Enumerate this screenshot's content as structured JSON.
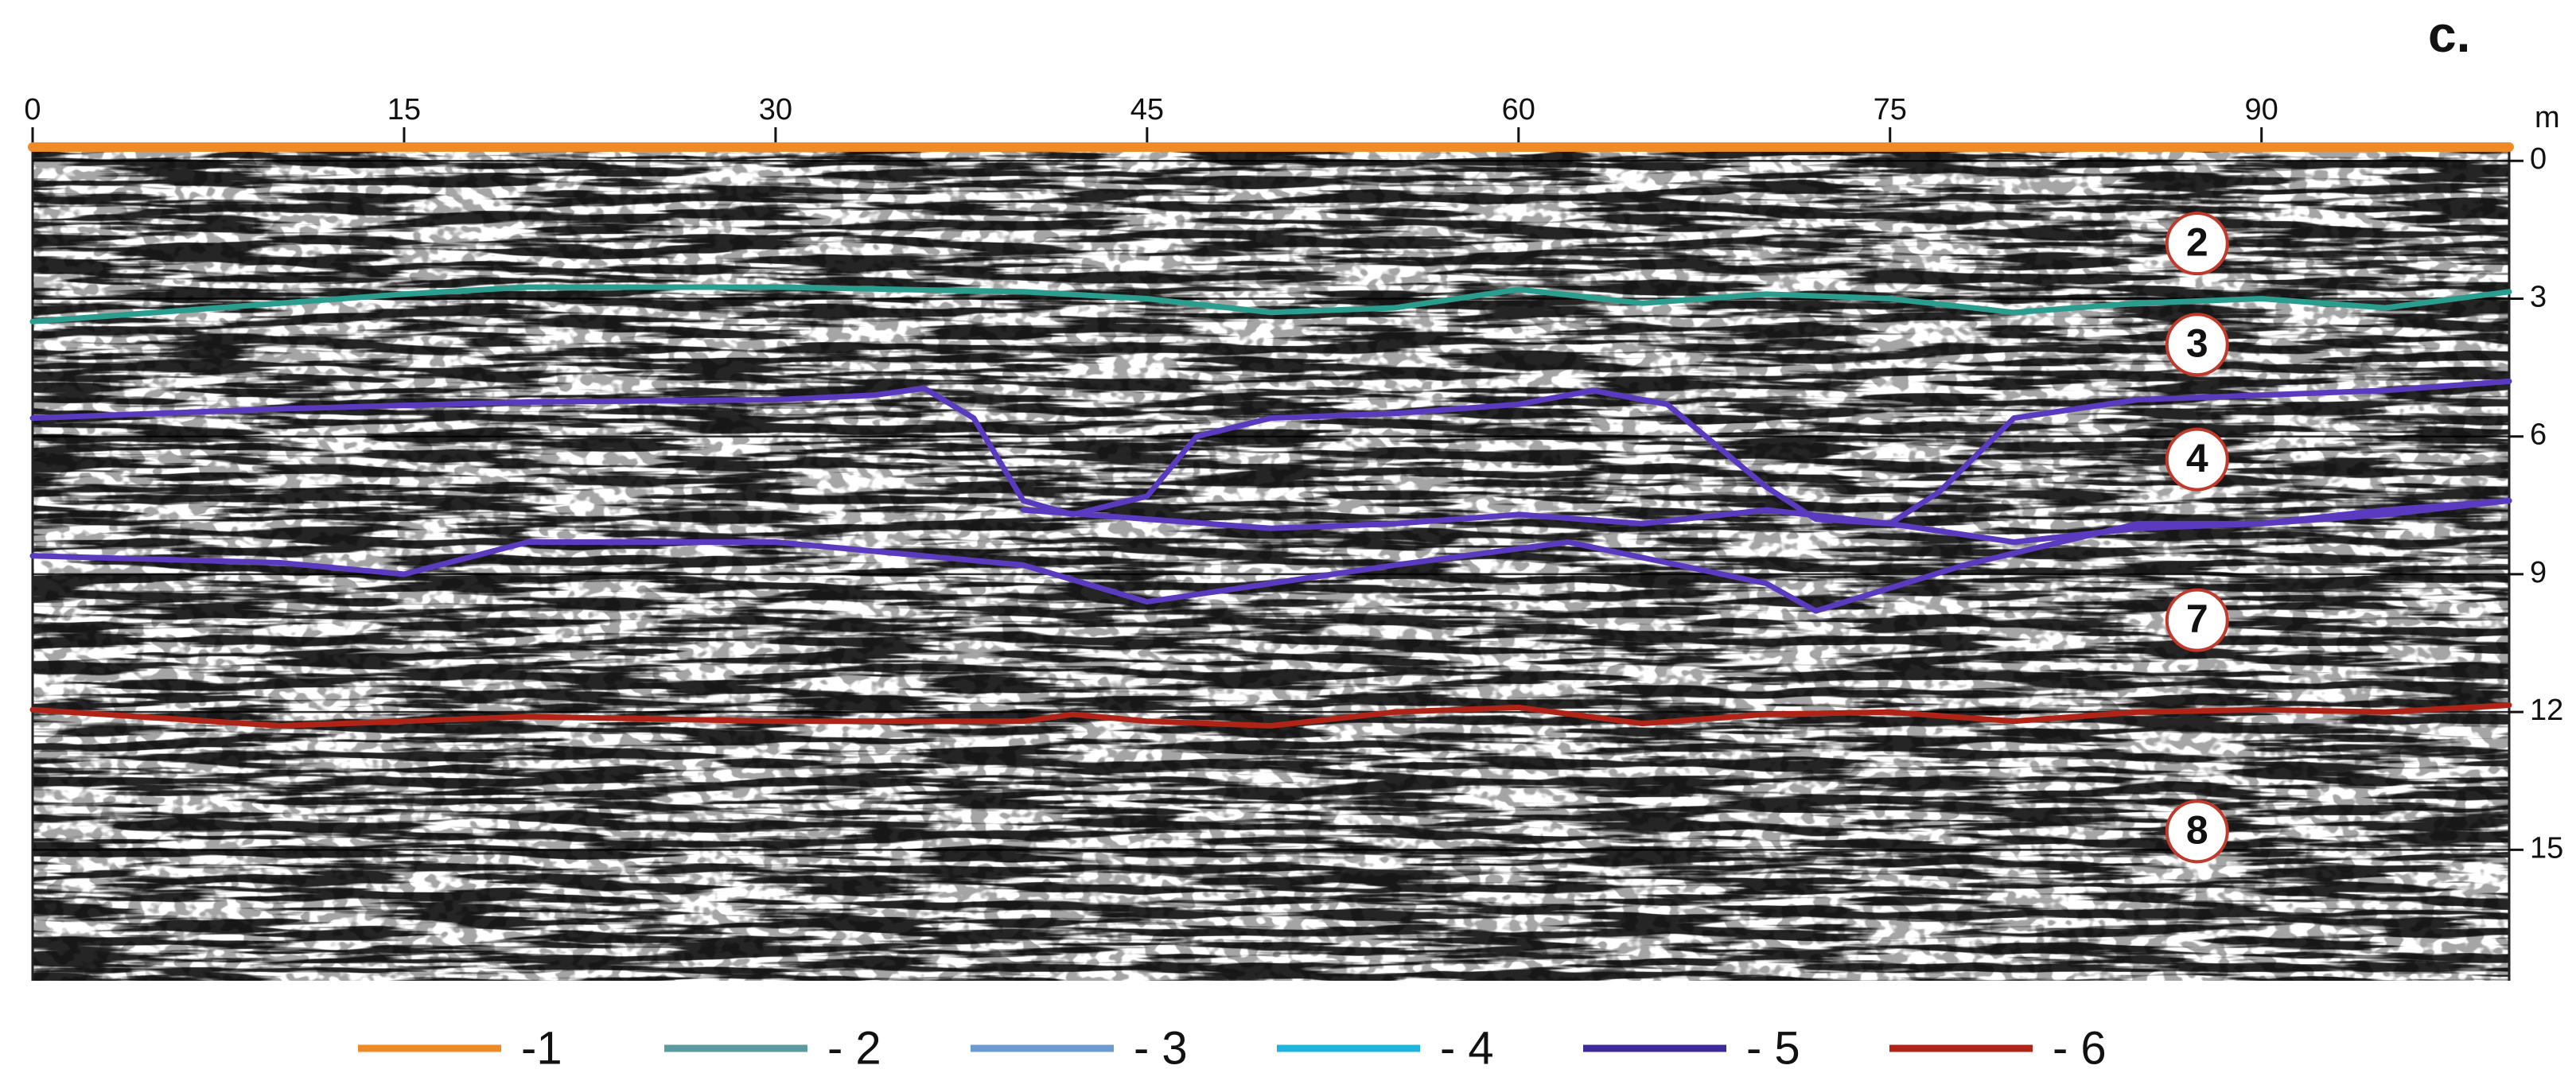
{
  "chart_data": {
    "type": "radargram",
    "panel_label": "c.",
    "xlabel": "m",
    "xlim": [
      0,
      100
    ],
    "xticks": [
      0,
      15,
      30,
      45,
      60,
      75,
      90
    ],
    "ylim": [
      -0.35,
      17.85
    ],
    "yticks": [
      0,
      3,
      6,
      9,
      12,
      15
    ],
    "grid": true,
    "legend": [
      {
        "label": "-1",
        "color": "#f08a24"
      },
      {
        "label": "- 2",
        "color": "#5b9aa0"
      },
      {
        "label": "- 3",
        "color": "#6c9bd2"
      },
      {
        "label": "- 4",
        "color": "#1fb4dc"
      },
      {
        "label": "- 5",
        "color": "#3f2a9c"
      },
      {
        "label": "- 6",
        "color": "#b02418"
      }
    ],
    "boundaries": [
      {
        "color": "#f08a24",
        "x": [
          0,
          100
        ],
        "values": [
          -0.3,
          -0.3
        ]
      },
      {
        "color": "#2a9d8f",
        "x": [
          0,
          5,
          10,
          15,
          20,
          25,
          30,
          35,
          40,
          45,
          50,
          55,
          60,
          65,
          70,
          75,
          80,
          85,
          90,
          95,
          100
        ],
        "values": [
          3.5,
          3.3,
          3.1,
          2.9,
          2.75,
          2.75,
          2.75,
          2.8,
          2.85,
          3.0,
          3.3,
          3.2,
          2.8,
          3.1,
          2.9,
          3.0,
          3.3,
          3.1,
          3.0,
          3.2,
          2.85
        ]
      },
      {
        "color": "#5a3bc0",
        "x": [
          0,
          10,
          20,
          30,
          34,
          36,
          38,
          40,
          42,
          45,
          47,
          50,
          55,
          60,
          63,
          66,
          68,
          70,
          72,
          75,
          77,
          80,
          85,
          90,
          95,
          100
        ],
        "values": [
          5.6,
          5.4,
          5.25,
          5.2,
          5.1,
          4.95,
          5.6,
          7.4,
          7.7,
          7.3,
          6.0,
          5.6,
          5.5,
          5.3,
          5.0,
          5.3,
          6.2,
          7.1,
          7.8,
          7.9,
          7.2,
          5.6,
          5.2,
          5.1,
          5.0,
          4.8
        ]
      },
      {
        "color": "#5a3bc0",
        "x": [
          40,
          45,
          50,
          55,
          60,
          65,
          70,
          75,
          80,
          85,
          90,
          95,
          100
        ],
        "values": [
          7.6,
          7.8,
          8.0,
          7.9,
          7.7,
          7.9,
          7.6,
          7.9,
          8.3,
          8.0,
          7.9,
          7.7,
          7.4
        ]
      },
      {
        "color": "#5a3bc0",
        "x": [
          0,
          10,
          15,
          20,
          30,
          40,
          45,
          50,
          55,
          62,
          70,
          72,
          78,
          85,
          90,
          95,
          100
        ],
        "values": [
          8.6,
          8.75,
          9.0,
          8.3,
          8.3,
          8.8,
          9.6,
          9.2,
          8.8,
          8.3,
          9.2,
          9.8,
          8.8,
          7.9,
          7.9,
          7.6,
          7.4
        ]
      },
      {
        "color": "#b02418",
        "x": [
          0,
          10,
          20,
          30,
          40,
          42,
          45,
          50,
          55,
          60,
          65,
          70,
          75,
          80,
          85,
          90,
          95,
          100
        ],
        "values": [
          11.95,
          12.3,
          12.1,
          12.2,
          12.2,
          12.05,
          12.2,
          12.3,
          12.0,
          11.9,
          12.25,
          12.05,
          12.0,
          12.2,
          12.0,
          11.95,
          12.0,
          11.85
        ]
      }
    ],
    "layer_labels": [
      {
        "text": "2",
        "x": 87.4,
        "y": 1.8
      },
      {
        "text": "3",
        "x": 87.4,
        "y": 4.0
      },
      {
        "text": "4",
        "x": 87.4,
        "y": 6.5
      },
      {
        "text": "7",
        "x": 87.4,
        "y": 10.0
      },
      {
        "text": "8",
        "x": 87.4,
        "y": 14.6
      }
    ]
  }
}
